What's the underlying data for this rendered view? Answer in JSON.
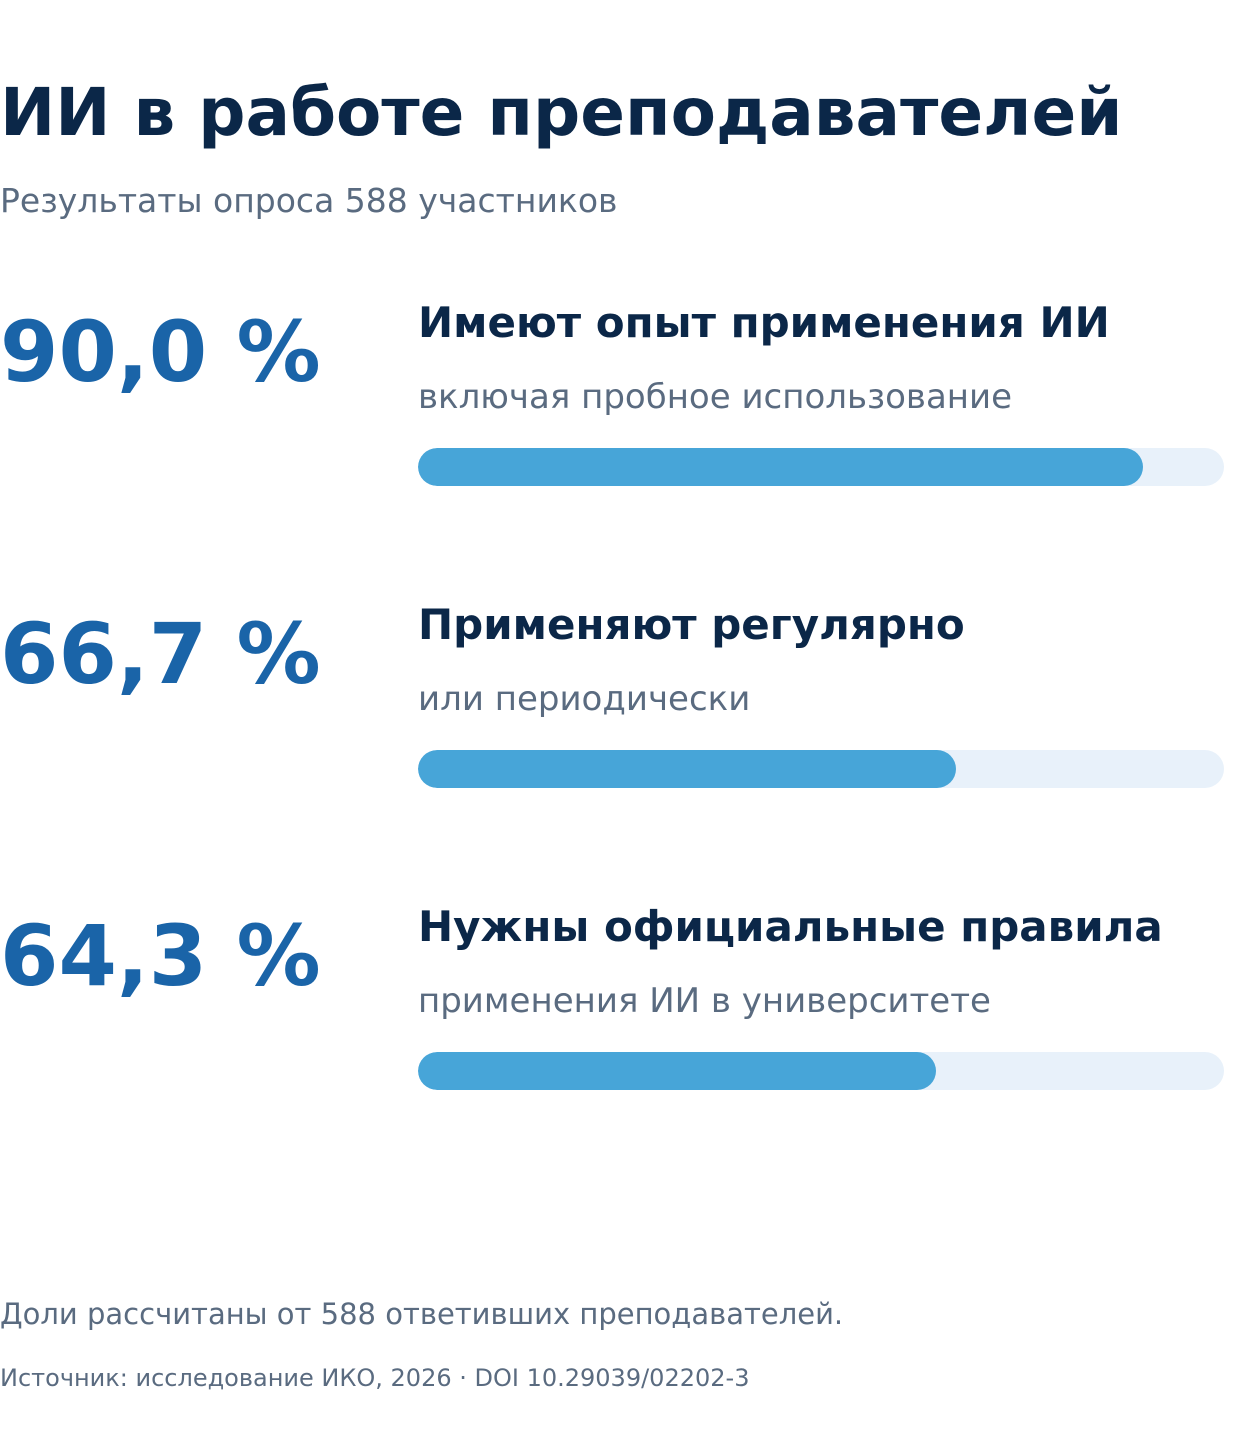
{
  "title": "ИИ в работе преподавателей",
  "subtitle": "Результаты опроса 588 участников",
  "colors": {
    "title": "#0b2748",
    "value": "#1a64a8",
    "muted": "#5a6b80",
    "bar_fill": "#47a5d8",
    "bar_track": "#e8f1fa"
  },
  "chart_data": {
    "type": "bar",
    "orientation": "horizontal",
    "xlim": [
      0,
      100
    ],
    "unit": "%",
    "items": [
      {
        "value_label": "90,0 %",
        "label": "Имеют опыт применения ИИ",
        "sublabel": "включая пробное использование",
        "value": 90.0
      },
      {
        "value_label": "66,7 %",
        "label": "Применяют регулярно",
        "sublabel": "или периодически",
        "value": 66.7
      },
      {
        "value_label": "64,3 %",
        "label": "Нужны официальные правила",
        "sublabel": "применения ИИ в университете",
        "value": 64.3
      }
    ]
  },
  "footer": {
    "note": "Доли рассчитаны от 588 ответивших преподавателей.",
    "source": "Источник: исследование ИКО, 2026 · DOI 10.29039/02202-3"
  }
}
